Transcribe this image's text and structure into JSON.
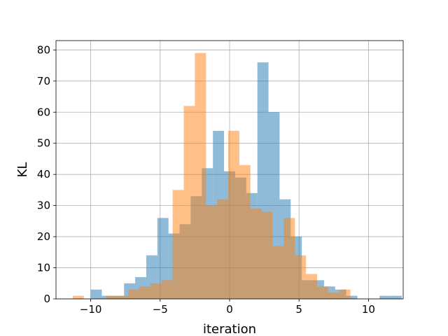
{
  "chart_data": {
    "type": "bar",
    "title": "",
    "xlabel": "iteration",
    "ylabel": "KL",
    "xlim": [
      -12.5,
      12.5
    ],
    "ylim": [
      0,
      83
    ],
    "grid": true,
    "bin_width": 0.8,
    "xticks": [
      -10,
      -5,
      0,
      5,
      10
    ],
    "xtick_labels": [
      "−10",
      "−5",
      "0",
      "5",
      "10"
    ],
    "yticks": [
      0,
      10,
      20,
      30,
      40,
      50,
      60,
      70,
      80
    ],
    "ytick_labels": [
      "0",
      "10",
      "20",
      "30",
      "40",
      "50",
      "60",
      "70",
      "80"
    ],
    "series": [
      {
        "color": "#1f77b4",
        "opacity": 0.5,
        "bin_start": -10,
        "values": [
          3,
          1,
          1,
          5,
          7,
          14,
          26,
          21,
          24,
          33,
          42,
          54,
          41,
          39,
          34,
          76,
          60,
          32,
          20,
          6,
          6,
          4,
          3,
          1,
          0,
          0,
          1,
          1
        ]
      },
      {
        "color": "#ff7f0e",
        "opacity": 0.5,
        "bin_start": -11.3,
        "values": [
          1,
          0,
          0,
          1,
          1,
          3,
          4,
          5,
          6,
          35,
          62,
          79,
          30,
          32,
          54,
          43,
          29,
          28,
          17,
          26,
          14,
          8,
          4,
          2,
          3
        ]
      }
    ]
  }
}
